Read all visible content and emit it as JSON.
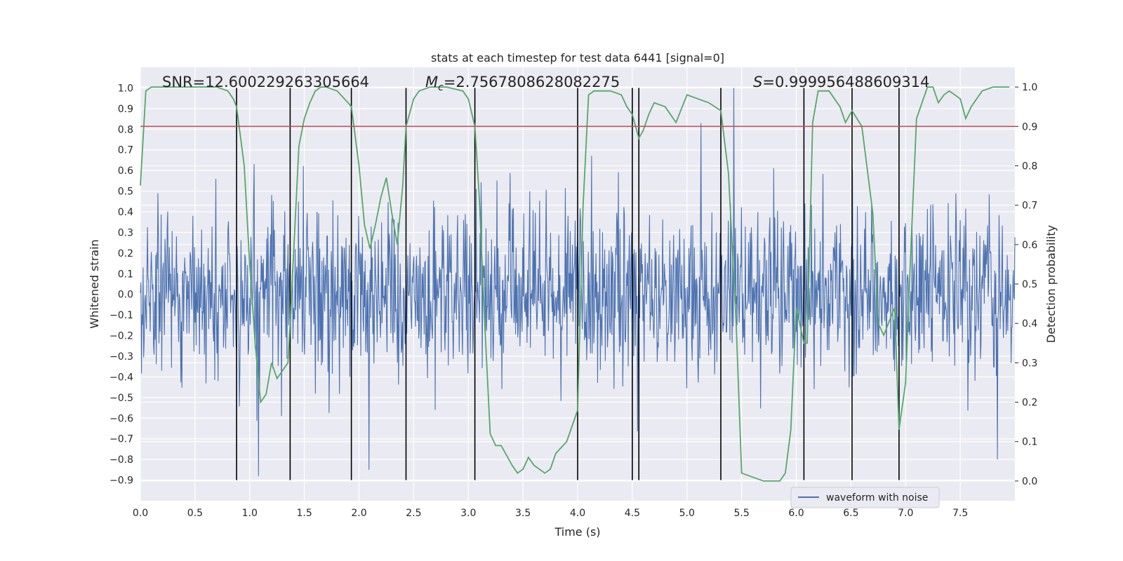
{
  "chart_data": {
    "type": "line",
    "title": "stats at each timestep for test data 6441 [signal=0]",
    "xlabel": "Time (s)",
    "ylabel": "Whitened strain",
    "y2label": "Detection probability",
    "xlim": [
      0,
      8
    ],
    "ylim": [
      -1.0,
      1.1
    ],
    "y2lim": [
      -0.05,
      1.05
    ],
    "xticks": [
      0.0,
      0.5,
      1.0,
      1.5,
      2.0,
      2.5,
      3.0,
      3.5,
      4.0,
      4.5,
      5.0,
      5.5,
      6.0,
      6.5,
      7.0,
      7.5
    ],
    "xtick_labels": [
      "0.0",
      "0.5",
      "1.0",
      "1.5",
      "2.0",
      "2.5",
      "3.0",
      "3.5",
      "4.0",
      "4.5",
      "5.0",
      "5.5",
      "6.0",
      "6.5",
      "7.0",
      "7.5"
    ],
    "yticks": [
      -0.9,
      -0.8,
      -0.7,
      -0.6,
      -0.5,
      -0.4,
      -0.3,
      -0.2,
      -0.1,
      0.0,
      0.1,
      0.2,
      0.3,
      0.4,
      0.5,
      0.6,
      0.7,
      0.8,
      0.9,
      1.0
    ],
    "ytick_labels": [
      "−0.9",
      "−0.8",
      "−0.7",
      "−0.6",
      "−0.5",
      "−0.4",
      "−0.3",
      "−0.2",
      "−0.1",
      "0.0",
      "0.1",
      "0.2",
      "0.3",
      "0.4",
      "0.5",
      "0.6",
      "0.7",
      "0.8",
      "0.9",
      "1.0"
    ],
    "y2ticks": [
      0.0,
      0.1,
      0.2,
      0.3,
      0.4,
      0.5,
      0.6,
      0.7,
      0.8,
      0.9,
      1.0
    ],
    "y2tick_labels": [
      "0.0",
      "0.1",
      "0.2",
      "0.3",
      "0.4",
      "0.5",
      "0.6",
      "0.7",
      "0.8",
      "0.9",
      "1.0"
    ],
    "grid": true,
    "legend_position": "lower-right",
    "legend": [
      "waveform with noise"
    ],
    "annotations": {
      "snr_text": "SNR=12.600229263305664",
      "mc_symbol": "M",
      "mc_subscript": "c",
      "mc_value": "=2.7567808628082275",
      "s_symbol": "S",
      "s_value": "=0.999956488609314"
    },
    "threshold": 0.9,
    "vertical_lines": [
      0.88,
      1.37,
      1.93,
      2.43,
      3.06,
      4.0,
      4.5,
      4.56,
      5.31,
      6.07,
      6.51,
      6.94
    ],
    "vertical_line_range": [
      -0.9,
      1.0
    ],
    "noise": {
      "seed": 6441,
      "samples": 1600,
      "sigma": 0.2,
      "spikes": [
        [
          5.43,
          1.0
        ],
        [
          5.13,
          0.83
        ],
        [
          1.08,
          -0.88
        ],
        [
          7.84,
          -0.8
        ]
      ]
    },
    "series": [
      {
        "name": "waveform with noise",
        "axis": "left",
        "color": "#4c72b0"
      },
      {
        "axis": "right",
        "color": "#55a868",
        "x": [
          0.0,
          0.05,
          0.1,
          0.2,
          0.3,
          0.4,
          0.5,
          0.6,
          0.7,
          0.8,
          0.85,
          0.88,
          0.95,
          1.0,
          1.05,
          1.1,
          1.15,
          1.2,
          1.25,
          1.3,
          1.35,
          1.37,
          1.45,
          1.5,
          1.55,
          1.6,
          1.65,
          1.7,
          1.8,
          1.9,
          1.93,
          2.0,
          2.05,
          2.1,
          2.15,
          2.2,
          2.25,
          2.3,
          2.35,
          2.4,
          2.43,
          2.5,
          2.55,
          2.65,
          2.8,
          2.95,
          3.0,
          3.06,
          3.1,
          3.15,
          3.2,
          3.25,
          3.3,
          3.4,
          3.45,
          3.5,
          3.55,
          3.6,
          3.7,
          3.75,
          3.8,
          3.9,
          4.0,
          4.05,
          4.1,
          4.15,
          4.2,
          4.3,
          4.4,
          4.45,
          4.5,
          4.56,
          4.6,
          4.65,
          4.7,
          4.8,
          4.9,
          5.0,
          5.1,
          5.2,
          5.31,
          5.38,
          5.45,
          5.5,
          5.6,
          5.7,
          5.8,
          5.85,
          5.9,
          5.95,
          6.0,
          6.07,
          6.1,
          6.15,
          6.2,
          6.3,
          6.4,
          6.45,
          6.51,
          6.6,
          6.7,
          6.75,
          6.8,
          6.9,
          6.94,
          7.0,
          7.05,
          7.1,
          7.2,
          7.25,
          7.3,
          7.35,
          7.4,
          7.45,
          7.5,
          7.55,
          7.6,
          7.7,
          7.8,
          7.95
        ],
        "y": [
          0.75,
          0.99,
          1.0,
          1.0,
          1.0,
          1.0,
          1.0,
          1.0,
          1.0,
          0.99,
          0.97,
          0.95,
          0.8,
          0.55,
          0.35,
          0.2,
          0.22,
          0.3,
          0.26,
          0.28,
          0.3,
          0.4,
          0.85,
          0.92,
          0.96,
          0.99,
          1.0,
          1.0,
          0.99,
          0.96,
          0.95,
          0.8,
          0.65,
          0.59,
          0.65,
          0.72,
          0.77,
          0.68,
          0.6,
          0.75,
          0.9,
          0.97,
          0.99,
          1.0,
          1.0,
          0.99,
          0.97,
          0.9,
          0.72,
          0.4,
          0.12,
          0.09,
          0.09,
          0.04,
          0.02,
          0.03,
          0.06,
          0.04,
          0.02,
          0.03,
          0.07,
          0.1,
          0.18,
          0.7,
          0.98,
          0.99,
          0.99,
          0.99,
          0.98,
          0.95,
          0.93,
          0.87,
          0.89,
          0.93,
          0.96,
          0.95,
          0.91,
          0.98,
          0.97,
          0.96,
          0.94,
          0.78,
          0.4,
          0.02,
          0.01,
          0.0,
          0.0,
          0.0,
          0.02,
          0.13,
          0.44,
          0.35,
          0.35,
          0.91,
          0.99,
          0.99,
          0.95,
          0.91,
          0.94,
          0.9,
          0.68,
          0.4,
          0.37,
          0.44,
          0.13,
          0.25,
          0.6,
          0.92,
          1.0,
          1.0,
          0.96,
          0.98,
          0.99,
          0.98,
          0.97,
          0.92,
          0.95,
          0.99,
          1.0,
          1.0
        ]
      },
      {
        "axis": "right",
        "color": "#c44e52",
        "constant": 0.9
      }
    ]
  }
}
